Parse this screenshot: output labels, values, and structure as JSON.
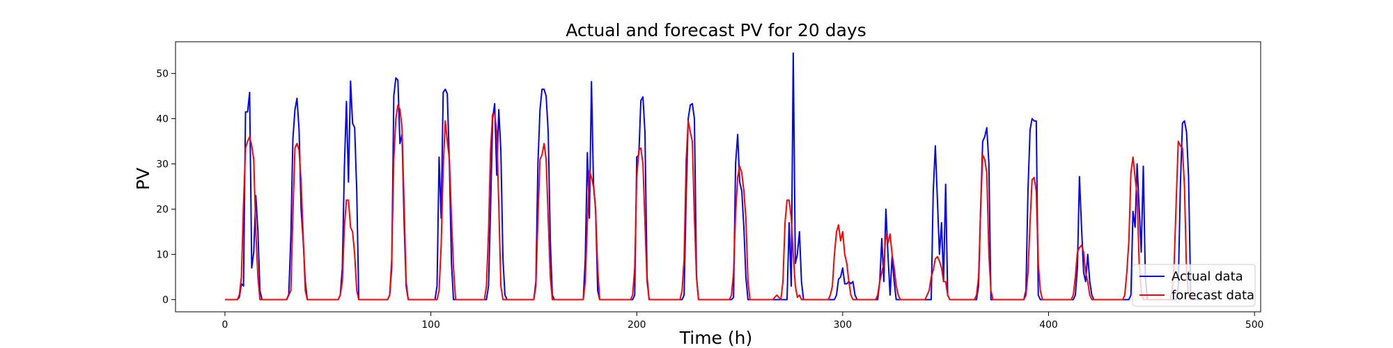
{
  "chart_data": {
    "type": "line",
    "title": "Actual and forecast PV for 20 days",
    "xlabel": "Time (h)",
    "ylabel": "PV",
    "xlim": [
      -24,
      503
    ],
    "ylim": [
      -2.7,
      57
    ],
    "xticks": [
      0,
      100,
      200,
      300,
      400,
      500
    ],
    "yticks": [
      0,
      10,
      20,
      30,
      40,
      50
    ],
    "grid": false,
    "legend_position": "bottom-right",
    "series": [
      {
        "name": "Actual data",
        "color": "#0000ff",
        "x": [
          0,
          6,
          7,
          8,
          9,
          10,
          11,
          12,
          13,
          14,
          15,
          16,
          17,
          18,
          19,
          20,
          30,
          31,
          32,
          33,
          34,
          35,
          36,
          37,
          38,
          39,
          40,
          41,
          42,
          43,
          44,
          55,
          56,
          57,
          58,
          59,
          60,
          61,
          62,
          63,
          64,
          65,
          66,
          67,
          79,
          80,
          81,
          82,
          83,
          84,
          85,
          86,
          87,
          88,
          89,
          90,
          91,
          102,
          103,
          104,
          105,
          106,
          107,
          108,
          109,
          110,
          111,
          112,
          113,
          114,
          127,
          128,
          129,
          130,
          131,
          132,
          133,
          134,
          135,
          136,
          137,
          138,
          150,
          151,
          152,
          153,
          154,
          155,
          156,
          157,
          158,
          159,
          160,
          161,
          162,
          174,
          175,
          176,
          177,
          178,
          179,
          180,
          181,
          182,
          183,
          184,
          185,
          186,
          198,
          199,
          200,
          201,
          202,
          203,
          204,
          205,
          206,
          207,
          208,
          209,
          210,
          222,
          223,
          224,
          225,
          226,
          227,
          228,
          229,
          230,
          231,
          232,
          233,
          234,
          246,
          247,
          248,
          249,
          250,
          251,
          252,
          253,
          254,
          255,
          256,
          257,
          258,
          268,
          270,
          271,
          272,
          273,
          274,
          275,
          276,
          277,
          278,
          279,
          280,
          281,
          282,
          283,
          284,
          285,
          294,
          295,
          296,
          297,
          298,
          299,
          300,
          301,
          302,
          303,
          304,
          305,
          306,
          307,
          316,
          317,
          318,
          319,
          320,
          321,
          322,
          323,
          324,
          325,
          326,
          327,
          328,
          329,
          330,
          341,
          342,
          343,
          344,
          345,
          346,
          347,
          348,
          349,
          350,
          351,
          352,
          353,
          354,
          365,
          366,
          367,
          368,
          369,
          370,
          371,
          372,
          373,
          374,
          375,
          376,
          377,
          388,
          389,
          390,
          391,
          392,
          393,
          394,
          395,
          396,
          397,
          398,
          399,
          400,
          412,
          413,
          414,
          415,
          416,
          417,
          418,
          419,
          420,
          421,
          422,
          423,
          424,
          425,
          426,
          436,
          437,
          438,
          439,
          440,
          441,
          442,
          443,
          444,
          445,
          446,
          447,
          448,
          449,
          450,
          460,
          461,
          462,
          463,
          464,
          465,
          466,
          467,
          468,
          469,
          470,
          471,
          472,
          473,
          474
        ],
        "y": [
          0,
          0,
          0.5,
          3.5,
          3,
          41.5,
          41.5,
          45.8,
          7,
          10.5,
          23,
          15,
          2,
          0,
          0,
          0,
          0,
          1.2,
          14,
          35.5,
          42,
          44.5,
          37.5,
          20,
          13,
          4,
          0,
          0,
          0,
          0,
          0,
          0,
          1,
          7,
          29,
          43.8,
          26,
          48.3,
          39,
          38,
          24,
          0,
          0,
          0,
          0,
          1,
          7,
          45,
          49,
          48.5,
          34.5,
          36.5,
          17,
          3,
          0,
          0,
          0,
          0,
          3,
          31.5,
          18,
          45.8,
          46.5,
          45.5,
          30,
          8,
          0,
          0,
          0,
          0,
          0,
          3,
          20,
          40,
          43.3,
          27.5,
          42,
          33,
          9,
          1,
          0,
          0,
          0,
          4,
          30,
          42,
          46.5,
          46.5,
          45,
          37,
          13,
          1,
          0,
          0,
          0,
          0,
          9,
          32.5,
          18,
          48.2,
          25.5,
          20,
          2,
          0,
          0,
          0,
          0,
          0,
          0,
          1,
          31.5,
          32,
          44,
          44.8,
          37,
          5,
          0,
          0,
          0,
          0,
          0,
          0,
          1,
          23,
          40,
          43,
          43.3,
          40,
          5,
          0,
          0,
          0,
          0,
          0,
          0,
          0.5,
          30,
          36.5,
          26,
          24,
          16,
          5,
          0,
          0,
          0,
          0,
          0,
          0,
          0,
          0,
          0,
          0,
          17,
          3,
          54.5,
          8,
          10,
          15,
          4,
          0,
          0,
          0,
          0,
          0,
          0,
          0,
          0,
          1,
          4.5,
          5,
          7,
          3.5,
          3.5,
          4,
          3.5,
          4,
          1,
          0,
          0,
          0,
          4,
          13.5,
          4,
          20,
          10,
          1,
          9.5,
          4,
          0,
          0,
          0,
          0,
          0,
          0,
          0,
          0,
          24,
          34,
          22,
          10,
          17,
          4,
          25.5,
          1,
          0,
          0,
          0,
          0,
          3,
          20,
          35,
          36,
          38,
          30,
          0,
          0,
          0,
          0,
          0,
          0,
          0,
          2,
          24,
          37.5,
          40,
          39.5,
          39.5,
          1,
          0,
          0,
          0,
          0,
          0,
          0,
          1,
          7,
          27.2,
          16,
          6,
          4,
          10,
          4,
          1,
          0,
          0,
          0,
          0,
          0,
          0,
          0,
          0,
          0,
          1,
          19.5,
          16,
          30,
          20,
          10.5,
          29.5,
          5,
          0,
          0,
          0,
          0,
          0,
          0,
          3,
          25,
          39,
          39.5,
          37,
          27,
          1,
          0,
          0,
          0,
          0,
          0
        ]
      },
      {
        "name": "forecast data",
        "color": "#ff0000",
        "x": [
          0,
          5,
          6,
          7,
          8,
          9,
          10,
          11,
          12,
          13,
          14,
          15,
          16,
          17,
          18,
          19,
          20,
          28,
          30,
          31,
          32,
          33,
          34,
          35,
          36,
          37,
          38,
          39,
          40,
          41,
          42,
          53,
          55,
          56,
          57,
          58,
          59,
          60,
          61,
          62,
          63,
          64,
          65,
          66,
          78,
          79,
          80,
          81,
          82,
          83,
          84,
          85,
          86,
          87,
          88,
          89,
          90,
          101,
          103,
          104,
          105,
          106,
          107,
          108,
          109,
          110,
          111,
          112,
          113,
          124,
          126,
          127,
          128,
          129,
          130,
          131,
          132,
          133,
          134,
          135,
          136,
          137,
          148,
          150,
          151,
          152,
          153,
          154,
          155,
          156,
          157,
          158,
          159,
          160,
          161,
          171,
          173,
          174,
          175,
          176,
          177,
          178,
          179,
          180,
          181,
          182,
          183,
          184,
          195,
          197,
          198,
          199,
          200,
          201,
          202,
          203,
          204,
          205,
          206,
          207,
          208,
          219,
          221,
          222,
          223,
          224,
          225,
          226,
          227,
          228,
          229,
          230,
          231,
          232,
          243,
          245,
          246,
          247,
          248,
          249,
          250,
          251,
          252,
          253,
          254,
          255,
          256,
          257,
          266,
          268,
          270,
          271,
          272,
          273,
          274,
          275,
          276,
          277,
          278,
          279,
          280,
          281,
          282,
          283,
          291,
          293,
          294,
          295,
          296,
          297,
          298,
          299,
          300,
          301,
          302,
          303,
          304,
          305,
          306,
          307,
          314,
          316,
          317,
          318,
          319,
          320,
          321,
          322,
          323,
          324,
          325,
          326,
          327,
          328,
          329,
          338,
          340,
          341,
          342,
          343,
          344,
          345,
          346,
          347,
          348,
          349,
          350,
          351,
          352,
          353,
          354,
          362,
          364,
          365,
          366,
          367,
          368,
          369,
          370,
          371,
          372,
          373,
          374,
          375,
          386,
          388,
          389,
          390,
          391,
          392,
          393,
          394,
          395,
          396,
          397,
          398,
          399,
          409,
          411,
          412,
          413,
          414,
          415,
          416,
          417,
          418,
          419,
          420,
          421,
          422,
          423,
          424,
          433,
          435,
          436,
          437,
          438,
          439,
          440,
          441,
          442,
          443,
          444,
          445,
          446,
          447,
          448,
          457,
          459,
          460,
          461,
          462,
          463,
          464,
          465,
          466,
          467,
          468,
          469,
          470,
          471
        ],
        "y": [
          0,
          0,
          0,
          1,
          5,
          21,
          33.5,
          35,
          36,
          34,
          31,
          15,
          5,
          0,
          0,
          0,
          0,
          0,
          0,
          1,
          2,
          19,
          33.5,
          34.5,
          33,
          26,
          14,
          2,
          0,
          0,
          0,
          0,
          0,
          1,
          4,
          16,
          22,
          22,
          16,
          15,
          10,
          2,
          0,
          0,
          0,
          0,
          1,
          9,
          31,
          40,
          43,
          42,
          38,
          21,
          4,
          0,
          0,
          0,
          0,
          2,
          12,
          29,
          39.5,
          35,
          31,
          18,
          7,
          0,
          0,
          0,
          0,
          3,
          15,
          33,
          41,
          41,
          37,
          21,
          3,
          0,
          0,
          0,
          0,
          0,
          3,
          18,
          31,
          32,
          34.5,
          31,
          18,
          5,
          0,
          0,
          0,
          0,
          0,
          0,
          4,
          17,
          28.5,
          27,
          25,
          20,
          7,
          0,
          0,
          0,
          0,
          0,
          1,
          7,
          27,
          33,
          33.5,
          30,
          17,
          4,
          0,
          0,
          0,
          0,
          0,
          2,
          9,
          31,
          39.5,
          37,
          35,
          18,
          5,
          0,
          0,
          0,
          0,
          0,
          1,
          6,
          19,
          27,
          29.5,
          28,
          24,
          18,
          4,
          0,
          0,
          0,
          0,
          1,
          0,
          4,
          17,
          22,
          22,
          18,
          10,
          3,
          0.5,
          1,
          0,
          0,
          0,
          0,
          0,
          0,
          1,
          3,
          10,
          15,
          16.5,
          13,
          15,
          10,
          8,
          4,
          1,
          0,
          0,
          0,
          0,
          0,
          1,
          4,
          6,
          8,
          14.5,
          12.5,
          14.5,
          10,
          7,
          3,
          1,
          0,
          0,
          0,
          0,
          1,
          2,
          5,
          6.5,
          9,
          9.5,
          8.5,
          7,
          4,
          4,
          1,
          0,
          0,
          0,
          0,
          0,
          1,
          5,
          20,
          32,
          31,
          28,
          10,
          2,
          0,
          0,
          0,
          0,
          0,
          1,
          6,
          17,
          26.5,
          27,
          24,
          8,
          2,
          0,
          0,
          0,
          0,
          0,
          1,
          5,
          10.5,
          11.5,
          12,
          10.5,
          6,
          4,
          1,
          0,
          0,
          0,
          0,
          0,
          0,
          0,
          1,
          6,
          13,
          28,
          31.5,
          27,
          23,
          8,
          2,
          0,
          0,
          0,
          0,
          0,
          2,
          8,
          22,
          35,
          34,
          33.5,
          25,
          6,
          1,
          0,
          0,
          0
        ]
      }
    ]
  }
}
